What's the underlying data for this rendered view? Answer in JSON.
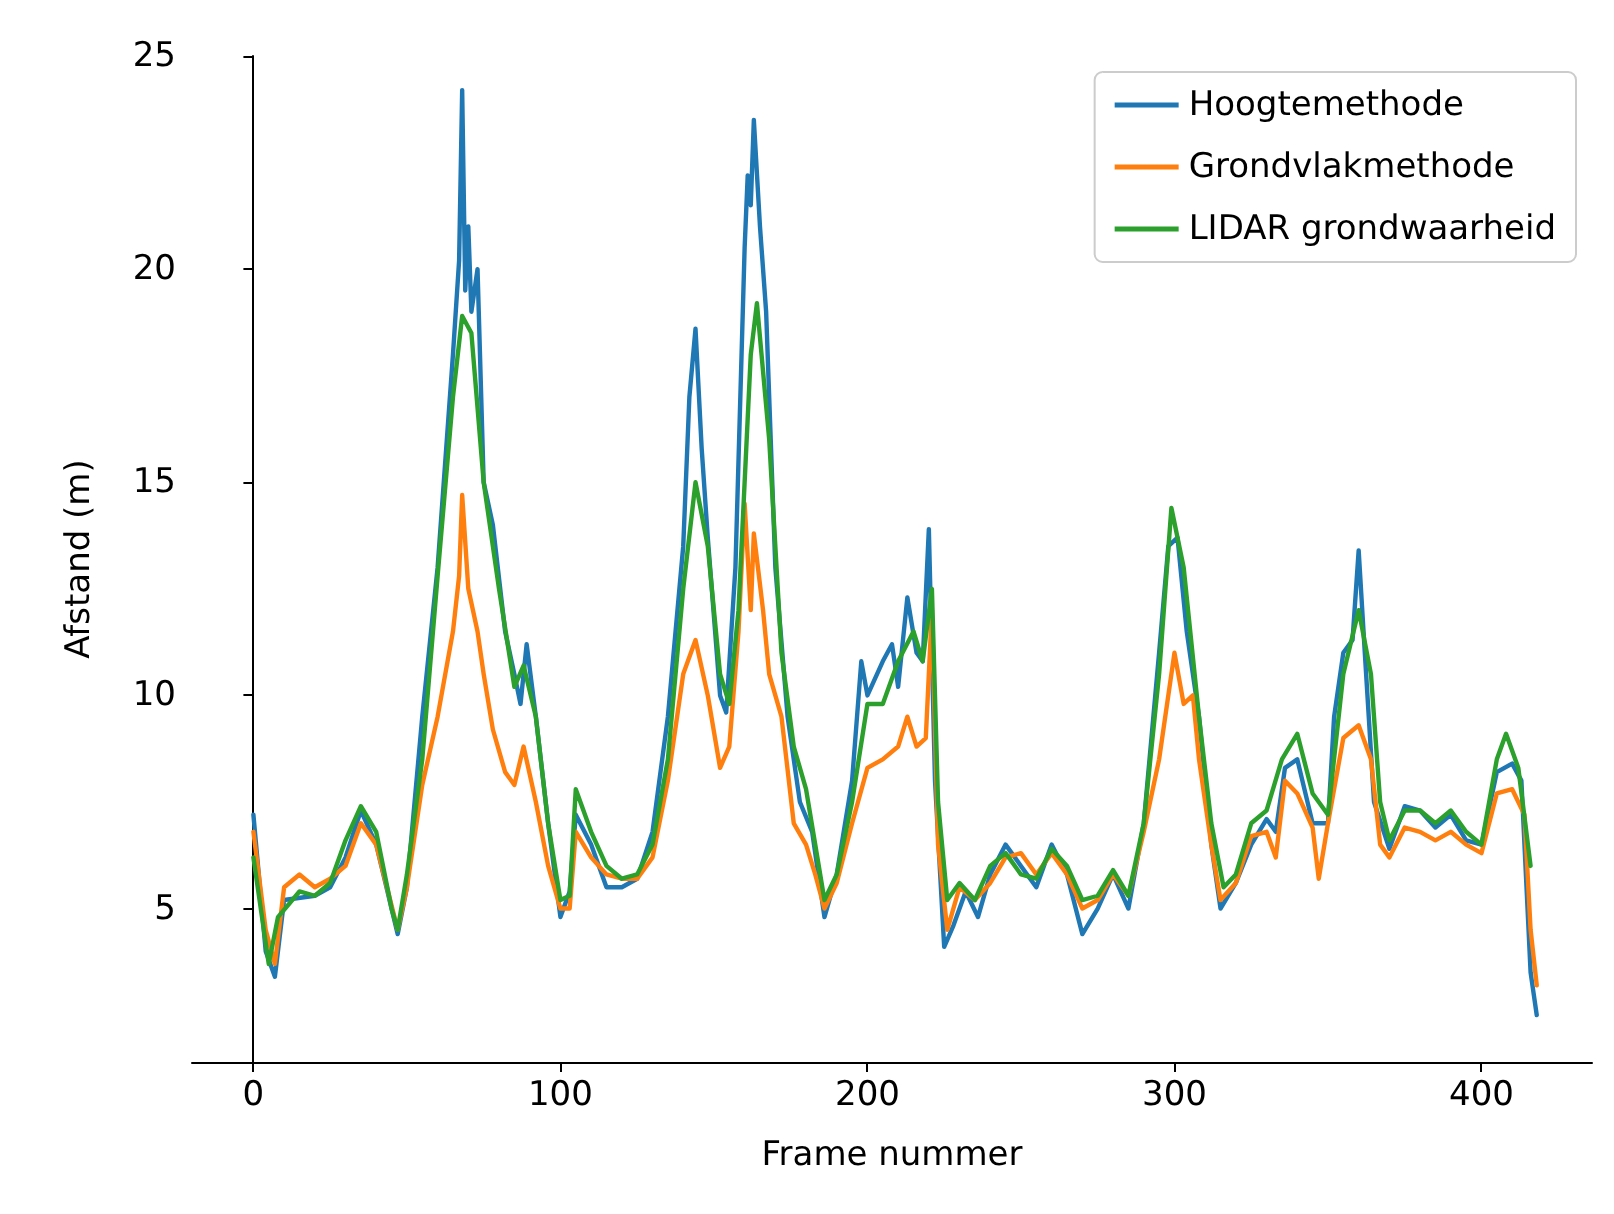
{
  "chart_data": {
    "type": "line",
    "xlabel": "Frame nummer",
    "ylabel": "Afstand (m)",
    "xlim": [
      -20,
      436
    ],
    "ylim": [
      1.4,
      25
    ],
    "xticks": [
      0,
      100,
      200,
      300,
      400
    ],
    "yticks": [
      5,
      10,
      15,
      20,
      25
    ],
    "grid": false,
    "legend": "top right",
    "line_style": "solid",
    "marker": "none",
    "series": [
      {
        "name": "Hoogtemethode",
        "color": "#1f77b4",
        "x": [
          0,
          4,
          7,
          10,
          20,
          25,
          30,
          35,
          40,
          47,
          50,
          55,
          60,
          65,
          67,
          68,
          69,
          70,
          71,
          73,
          75,
          78,
          82,
          85,
          87,
          89,
          92,
          96,
          100,
          103,
          105,
          110,
          115,
          120,
          125,
          130,
          135,
          140,
          142,
          144,
          146,
          148,
          152,
          154,
          157,
          160,
          161,
          162,
          163,
          165,
          167,
          170,
          174,
          178,
          182,
          186,
          190,
          195,
          198,
          200,
          205,
          208,
          210,
          213,
          216,
          218,
          220,
          222,
          225,
          228,
          232,
          236,
          240,
          245,
          250,
          255,
          260,
          265,
          270,
          275,
          280,
          285,
          290,
          295,
          298,
          301,
          304,
          308,
          312,
          315,
          320,
          325,
          330,
          333,
          336,
          340,
          345,
          350,
          352,
          355,
          358,
          360,
          362,
          365,
          370,
          375,
          380,
          385,
          390,
          395,
          400,
          405,
          410,
          413,
          416,
          418
        ],
        "values": [
          7.2,
          4.0,
          3.4,
          5.2,
          5.3,
          5.5,
          6.2,
          7.3,
          6.5,
          4.4,
          5.5,
          9.5,
          13.0,
          18.0,
          20.2,
          24.2,
          19.5,
          21.0,
          19.0,
          20.0,
          15.0,
          14.0,
          11.5,
          10.5,
          9.8,
          11.2,
          9.5,
          7.0,
          4.8,
          5.4,
          7.2,
          6.5,
          5.5,
          5.5,
          5.7,
          6.8,
          9.5,
          13.5,
          17.0,
          18.6,
          15.8,
          13.7,
          10.0,
          9.6,
          13.0,
          20.5,
          22.2,
          21.5,
          23.5,
          21.0,
          19.0,
          13.0,
          9.5,
          7.5,
          6.8,
          4.8,
          5.8,
          8.0,
          10.8,
          10.0,
          10.8,
          11.2,
          10.2,
          12.3,
          11.0,
          10.8,
          13.9,
          8.0,
          4.1,
          4.6,
          5.4,
          4.8,
          5.8,
          6.5,
          6.0,
          5.5,
          6.5,
          5.8,
          4.4,
          5.0,
          5.8,
          5.0,
          7.0,
          11.0,
          13.5,
          13.7,
          11.5,
          9.5,
          6.5,
          5.0,
          5.6,
          6.5,
          7.1,
          6.8,
          8.3,
          8.5,
          7.0,
          7.0,
          9.5,
          11.0,
          11.3,
          13.4,
          11.0,
          7.5,
          6.4,
          7.4,
          7.3,
          6.9,
          7.2,
          6.6,
          6.5,
          8.2,
          8.4,
          8.0,
          3.5,
          2.5
        ]
      },
      {
        "name": "Grondvlakmethode",
        "color": "#ff7f0e",
        "x": [
          0,
          4,
          7,
          10,
          15,
          20,
          25,
          30,
          35,
          40,
          47,
          50,
          55,
          60,
          65,
          67,
          68,
          70,
          73,
          75,
          78,
          82,
          85,
          88,
          92,
          96,
          100,
          103,
          105,
          110,
          115,
          120,
          125,
          130,
          135,
          140,
          144,
          148,
          152,
          155,
          158,
          160,
          162,
          163,
          166,
          168,
          172,
          176,
          180,
          183,
          186,
          190,
          195,
          200,
          205,
          210,
          213,
          216,
          219,
          221,
          223,
          226,
          230,
          235,
          240,
          245,
          250,
          255,
          260,
          265,
          270,
          275,
          280,
          285,
          290,
          295,
          300,
          303,
          306,
          308,
          312,
          315,
          320,
          325,
          330,
          333,
          336,
          340,
          345,
          347,
          350,
          355,
          360,
          364,
          367,
          370,
          375,
          380,
          385,
          390,
          395,
          400,
          405,
          410,
          414,
          416,
          418
        ],
        "values": [
          6.8,
          4.5,
          3.7,
          5.5,
          5.8,
          5.5,
          5.7,
          6.0,
          7.0,
          6.5,
          4.5,
          5.5,
          7.9,
          9.5,
          11.5,
          12.8,
          14.7,
          12.5,
          11.5,
          10.5,
          9.2,
          8.2,
          7.9,
          8.8,
          7.5,
          6.0,
          5.0,
          5.0,
          6.8,
          6.2,
          5.8,
          5.7,
          5.7,
          6.2,
          8.0,
          10.5,
          11.3,
          10.0,
          8.3,
          8.8,
          11.5,
          14.5,
          12.0,
          13.8,
          12.0,
          10.5,
          9.5,
          7.0,
          6.5,
          5.8,
          5.0,
          5.6,
          7.0,
          8.3,
          8.5,
          8.8,
          9.5,
          8.8,
          9.0,
          12.0,
          6.5,
          4.5,
          5.5,
          5.2,
          5.6,
          6.2,
          6.3,
          5.8,
          6.3,
          5.8,
          5.0,
          5.2,
          5.8,
          5.3,
          6.8,
          8.5,
          11.0,
          9.8,
          10.0,
          8.5,
          6.5,
          5.2,
          5.6,
          6.7,
          6.8,
          6.2,
          8.0,
          7.7,
          6.9,
          5.7,
          7.0,
          9.0,
          9.3,
          8.5,
          6.5,
          6.2,
          6.9,
          6.8,
          6.6,
          6.8,
          6.5,
          6.3,
          7.7,
          7.8,
          7.2,
          4.5,
          3.2
        ]
      },
      {
        "name": "LIDAR grondwaarheid",
        "color": "#2ca02c",
        "x": [
          0,
          5,
          8,
          15,
          20,
          25,
          30,
          35,
          40,
          45,
          47,
          50,
          55,
          60,
          65,
          68,
          71,
          75,
          80,
          85,
          88,
          92,
          96,
          100,
          103,
          105,
          110,
          115,
          120,
          125,
          130,
          135,
          140,
          144,
          148,
          152,
          155,
          158,
          162,
          164,
          168,
          172,
          176,
          180,
          183,
          186,
          190,
          195,
          200,
          205,
          210,
          215,
          218,
          221,
          223,
          226,
          230,
          235,
          240,
          245,
          250,
          255,
          260,
          265,
          270,
          275,
          280,
          285,
          290,
          295,
          299,
          303,
          308,
          312,
          316,
          320,
          325,
          330,
          335,
          340,
          345,
          350,
          355,
          360,
          364,
          367,
          370,
          375,
          380,
          385,
          390,
          395,
          400,
          405,
          408,
          412,
          416
        ],
        "values": [
          6.2,
          3.7,
          4.8,
          5.4,
          5.3,
          5.6,
          6.6,
          7.4,
          6.8,
          5.0,
          4.5,
          5.8,
          8.5,
          12.8,
          17.0,
          18.9,
          18.5,
          15.0,
          12.5,
          10.2,
          10.7,
          9.5,
          7.0,
          5.2,
          5.3,
          7.8,
          6.8,
          6.0,
          5.7,
          5.8,
          6.5,
          8.5,
          12.5,
          15.0,
          13.5,
          10.5,
          9.8,
          12.0,
          18.0,
          19.2,
          16.0,
          11.0,
          8.8,
          7.8,
          6.5,
          5.2,
          5.8,
          7.5,
          9.8,
          9.8,
          10.8,
          11.5,
          10.8,
          12.5,
          7.5,
          5.2,
          5.6,
          5.2,
          6.0,
          6.3,
          5.8,
          5.7,
          6.4,
          6.0,
          5.2,
          5.3,
          5.9,
          5.3,
          7.0,
          10.5,
          14.4,
          13.0,
          9.5,
          7.0,
          5.5,
          5.8,
          7.0,
          7.3,
          8.5,
          9.1,
          7.7,
          7.2,
          10.5,
          12.0,
          10.5,
          7.5,
          6.6,
          7.3,
          7.3,
          7.0,
          7.3,
          6.8,
          6.5,
          8.5,
          9.1,
          8.3,
          6.0
        ]
      }
    ]
  }
}
